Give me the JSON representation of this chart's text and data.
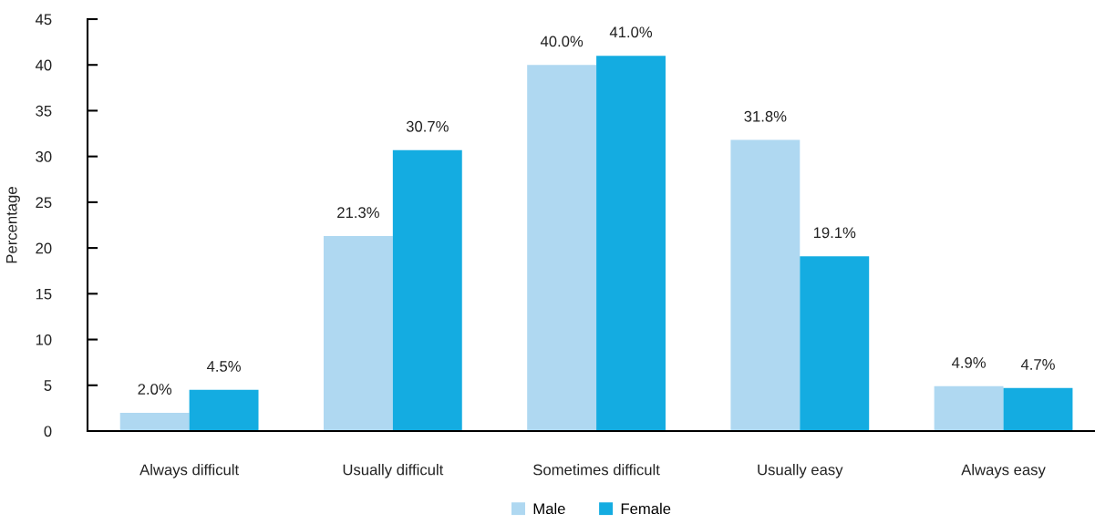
{
  "chart_data": {
    "type": "bar",
    "ylabel": "Percentage",
    "categories": [
      "Always difficult",
      "Usually difficult",
      "Sometimes difficult",
      "Usually easy",
      "Always easy"
    ],
    "series": [
      {
        "name": "Male",
        "color": "#afd8f1",
        "values": [
          2.0,
          21.3,
          40.0,
          31.8,
          4.9
        ],
        "value_labels": [
          "2.0%",
          "21.3%",
          "40.0%",
          "31.8%",
          "4.9%"
        ]
      },
      {
        "name": "Female",
        "color": "#14ace1",
        "values": [
          4.5,
          30.7,
          41.0,
          19.1,
          4.7
        ],
        "value_labels": [
          "4.5%",
          "30.7%",
          "41.0%",
          "19.1%",
          "4.7%"
        ]
      }
    ],
    "ylim": [
      0,
      45
    ],
    "yticks": [
      0,
      5,
      10,
      15,
      20,
      25,
      30,
      35,
      40,
      45
    ],
    "grid": false,
    "legend": "bottom"
  }
}
